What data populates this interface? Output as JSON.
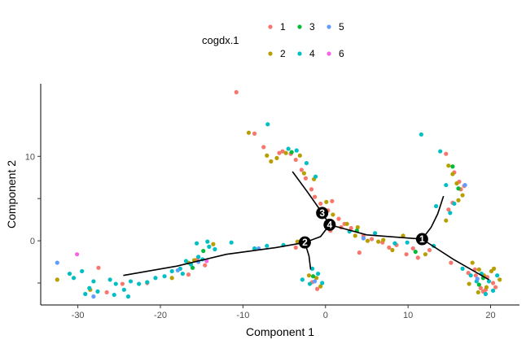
{
  "chart_data": {
    "type": "scatter",
    "title": "",
    "xlabel": "Component 1",
    "ylabel": "Component 2",
    "xlim": [
      -34.5,
      23.5
    ],
    "ylim": [
      -7.6,
      18.6
    ],
    "xticks": [
      -30,
      -20,
      -10,
      0,
      10,
      20
    ],
    "yticks": [
      -5,
      0,
      5,
      10
    ],
    "x_tick_labels_shown": [
      "-30",
      "-20",
      "-10",
      "0",
      "10",
      "20"
    ],
    "y_tick_labels_shown": [
      "0",
      "10"
    ],
    "grid": false,
    "legend": {
      "title": "cogdx.1",
      "position": "top",
      "entries": [
        {
          "label": "1",
          "color": "#F8766D"
        },
        {
          "label": "2",
          "color": "#B79F00"
        },
        {
          "label": "3",
          "color": "#00BA38"
        },
        {
          "label": "4",
          "color": "#00BFC4"
        },
        {
          "label": "5",
          "color": "#619CFF"
        },
        {
          "label": "6",
          "color": "#F564E3"
        }
      ]
    },
    "trajectory": [
      [
        [
          -24.5,
          -4.1
        ],
        [
          -18,
          -3.0
        ],
        [
          -12,
          -1.6
        ],
        [
          -6,
          -0.8
        ],
        [
          -2.5,
          -0.2
        ]
      ],
      [
        [
          -2.5,
          -0.2
        ],
        [
          -0.6,
          0.5
        ],
        [
          0.5,
          1.9
        ]
      ],
      [
        [
          -2.5,
          -0.2
        ],
        [
          -2.0,
          -1.8
        ],
        [
          -1.8,
          -3.4
        ]
      ],
      [
        [
          0.5,
          1.9
        ],
        [
          -0.4,
          3.3
        ]
      ],
      [
        [
          -0.4,
          3.3
        ],
        [
          -2.2,
          5.8
        ],
        [
          -4.0,
          8.2
        ]
      ],
      [
        [
          0.5,
          1.9
        ],
        [
          5,
          0.7
        ],
        [
          11.7,
          0.2
        ]
      ],
      [
        [
          11.7,
          0.2
        ],
        [
          12.8,
          1.6
        ],
        [
          13.6,
          3.2
        ],
        [
          14.3,
          5.3
        ]
      ],
      [
        [
          11.7,
          0.2
        ],
        [
          15.5,
          -2.2
        ],
        [
          19.8,
          -4.6
        ]
      ]
    ],
    "branch_nodes": [
      {
        "label": "1",
        "x": 11.7,
        "y": 0.2
      },
      {
        "label": "2",
        "x": -2.5,
        "y": -0.2
      },
      {
        "label": "3",
        "x": -0.4,
        "y": 3.3
      },
      {
        "label": "4",
        "x": 0.5,
        "y": 1.9
      }
    ],
    "series": [
      {
        "name": "1",
        "color": "#F8766D",
        "points": [
          [
            -10.8,
            17.6
          ],
          [
            -8.6,
            12.7
          ],
          [
            -7.5,
            11.1
          ],
          [
            -5.2,
            10.6
          ],
          [
            -4.2,
            10.3
          ],
          [
            -3.6,
            9.6
          ],
          [
            -2.9,
            8.4
          ],
          [
            -2.4,
            7.4
          ],
          [
            -1.7,
            6.1
          ],
          [
            -1.3,
            5.2
          ],
          [
            -0.6,
            4.4
          ],
          [
            0.3,
            3.6
          ],
          [
            0.8,
            4.7
          ],
          [
            1.6,
            2.6
          ],
          [
            2.3,
            2.0
          ],
          [
            3.1,
            1.5
          ],
          [
            4.6,
            0.6
          ],
          [
            5.6,
            0.2
          ],
          [
            6.9,
            -0.2
          ],
          [
            8.6,
            -0.5
          ],
          [
            10.6,
            -0.9
          ],
          [
            12.6,
            -1.1
          ],
          [
            15.2,
            -2.6
          ],
          [
            17.3,
            -3.8
          ],
          [
            18.2,
            -4.1
          ],
          [
            19.6,
            -4.3
          ],
          [
            20.3,
            -5.0
          ],
          [
            18.8,
            -5.6
          ],
          [
            19.1,
            -6.0
          ],
          [
            20.6,
            -5.5
          ],
          [
            14.6,
            10.3
          ],
          [
            15.6,
            8.1
          ],
          [
            16.2,
            7.0
          ],
          [
            15.4,
            4.5
          ],
          [
            14.9,
            3.7
          ],
          [
            16.4,
            6.1
          ],
          [
            -26.5,
            -6.1
          ],
          [
            -27.5,
            -3.2
          ],
          [
            -24.6,
            -5.1
          ],
          [
            -21.6,
            -5.0
          ],
          [
            -16.6,
            -4.0
          ],
          [
            -15.5,
            -2.2
          ],
          [
            -14.6,
            -2.9
          ],
          [
            -3.6,
            -0.8
          ],
          [
            -1.6,
            -4.9
          ],
          [
            -1.0,
            -5.7
          ],
          [
            0.6,
            1.2
          ],
          [
            1.9,
            1.6
          ],
          [
            4.1,
            -1.4
          ],
          [
            7.7,
            -0.8
          ],
          [
            9.8,
            -1.6
          ],
          [
            11.2,
            -2.0
          ],
          [
            18.1,
            -3.4
          ],
          [
            19.4,
            -5.8
          ],
          [
            -5.6,
            10.4
          ],
          [
            16.8,
            6.5
          ]
        ]
      },
      {
        "name": "2",
        "color": "#B79F00",
        "points": [
          [
            -9.3,
            12.8
          ],
          [
            -7.1,
            10.1
          ],
          [
            -6.6,
            9.4
          ],
          [
            -4.8,
            10.4
          ],
          [
            -3.1,
            10.1
          ],
          [
            -2.6,
            8.0
          ],
          [
            -1.4,
            7.3
          ],
          [
            0.1,
            4.6
          ],
          [
            0.9,
            3.1
          ],
          [
            2.6,
            2.0
          ],
          [
            3.9,
            1.6
          ],
          [
            5.1,
            0.0
          ],
          [
            6.4,
            -0.1
          ],
          [
            8.1,
            -1.1
          ],
          [
            9.4,
            0.6
          ],
          [
            14.9,
            8.9
          ],
          [
            15.4,
            7.9
          ],
          [
            16.6,
            5.4
          ],
          [
            16.1,
            4.8
          ],
          [
            14.6,
            2.4
          ],
          [
            17.8,
            -2.6
          ],
          [
            18.6,
            -3.4
          ],
          [
            19.2,
            -4.1
          ],
          [
            20.1,
            -3.6
          ],
          [
            21.1,
            -4.6
          ],
          [
            19.5,
            -5.5
          ],
          [
            18.5,
            -6.1
          ],
          [
            -32.5,
            -4.6
          ],
          [
            -28.5,
            -5.8
          ],
          [
            -18.6,
            -4.4
          ],
          [
            -16.6,
            -2.6
          ],
          [
            -15.9,
            -2.3
          ],
          [
            -13.6,
            -0.4
          ],
          [
            -2.0,
            -4.1
          ],
          [
            -1.1,
            -4.4
          ],
          [
            -0.6,
            -5.4
          ],
          [
            -3.4,
            -0.1
          ],
          [
            3.6,
            0.6
          ],
          [
            7.0,
            0.1
          ],
          [
            12.1,
            -1.6
          ],
          [
            20.4,
            -3.3
          ],
          [
            17.4,
            -5.1
          ],
          [
            -5.9,
            9.8
          ],
          [
            15.9,
            6.8
          ]
        ]
      },
      {
        "name": "3",
        "color": "#00BA38",
        "points": [
          [
            -4.1,
            10.5
          ],
          [
            3.8,
            1.2
          ],
          [
            15.4,
            8.8
          ],
          [
            16.1,
            6.2
          ],
          [
            19.1,
            -4.4
          ],
          [
            -16.1,
            -3.2
          ],
          [
            -1.5,
            -4.2
          ],
          [
            10.9,
            -1.3
          ],
          [
            -14.8,
            -1.2
          ],
          [
            18.6,
            -5.2
          ]
        ]
      },
      {
        "name": "4",
        "color": "#00BFC4",
        "points": [
          [
            -7.0,
            13.8
          ],
          [
            -4.5,
            10.9
          ],
          [
            -3.5,
            10.7
          ],
          [
            -2.3,
            9.2
          ],
          [
            -1.2,
            7.6
          ],
          [
            -0.4,
            3.1
          ],
          [
            2.9,
            1.1
          ],
          [
            6.0,
            0.9
          ],
          [
            8.4,
            -0.3
          ],
          [
            11.6,
            12.6
          ],
          [
            13.9,
            10.6
          ],
          [
            14.6,
            6.6
          ],
          [
            13.4,
            4.1
          ],
          [
            15.1,
            3.3
          ],
          [
            16.6,
            -3.3
          ],
          [
            18.9,
            -3.9
          ],
          [
            19.8,
            -4.8
          ],
          [
            20.8,
            -4.1
          ],
          [
            20.3,
            -5.9
          ],
          [
            18.3,
            -4.8
          ],
          [
            -29.5,
            -3.6
          ],
          [
            -30.5,
            -4.4
          ],
          [
            -28.6,
            -5.6
          ],
          [
            -29.1,
            -6.3
          ],
          [
            -27.6,
            -6.0
          ],
          [
            -26.1,
            -4.6
          ],
          [
            -25.4,
            -5.1
          ],
          [
            -24.4,
            -5.8
          ],
          [
            -23.6,
            -4.8
          ],
          [
            -22.6,
            -5.1
          ],
          [
            -21.6,
            -4.9
          ],
          [
            -20.6,
            -4.4
          ],
          [
            -19.5,
            -4.2
          ],
          [
            -18.6,
            -3.6
          ],
          [
            -17.6,
            -3.3
          ],
          [
            -16.9,
            -2.4
          ],
          [
            -16.3,
            -2.8
          ],
          [
            -15.4,
            -1.9
          ],
          [
            -14.9,
            -2.2
          ],
          [
            -14.1,
            -0.7
          ],
          [
            -13.4,
            -1.0
          ],
          [
            -15.6,
            -0.3
          ],
          [
            -11.4,
            -0.2
          ],
          [
            -8.6,
            -0.9
          ],
          [
            -7.1,
            -0.6
          ],
          [
            -5.1,
            -0.5
          ],
          [
            -2.8,
            -4.6
          ],
          [
            -1.9,
            -5.1
          ],
          [
            -1.6,
            -3.3
          ],
          [
            -0.9,
            -3.9
          ],
          [
            -0.4,
            -5.0
          ],
          [
            9.9,
            -0.2
          ],
          [
            13.1,
            -0.6
          ],
          [
            -31.0,
            -3.9
          ],
          [
            -28.1,
            -4.8
          ],
          [
            -25.6,
            -6.4
          ],
          [
            -23.9,
            -6.6
          ],
          [
            -17.3,
            -3.9
          ],
          [
            -14.3,
            -0.1
          ],
          [
            15.6,
            4.4
          ],
          [
            17.6,
            -4.1
          ],
          [
            19.4,
            -6.3
          ]
        ]
      },
      {
        "name": "5",
        "color": "#619CFF",
        "points": [
          [
            -32.5,
            -2.6
          ],
          [
            -28.1,
            -6.6
          ],
          [
            -17.9,
            -3.5
          ],
          [
            -15.4,
            -2.5
          ],
          [
            -8.1,
            -0.9
          ],
          [
            -1.3,
            -4.8
          ],
          [
            4.6,
            0.3
          ],
          [
            16.9,
            6.6
          ],
          [
            18.4,
            -4.5
          ]
        ]
      },
      {
        "name": "6",
        "color": "#F564E3",
        "points": [
          [
            -30.1,
            -1.6
          ],
          [
            -14.4,
            -2.4
          ]
        ]
      }
    ]
  }
}
